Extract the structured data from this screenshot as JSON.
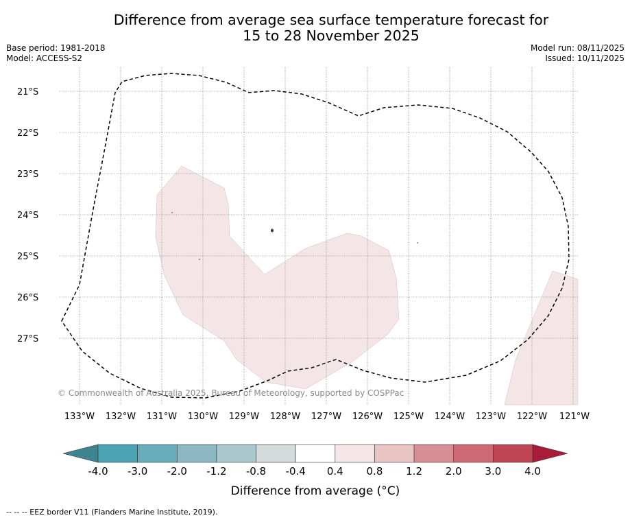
{
  "title_line1": "Difference from average sea surface temperature forecast for",
  "title_line2": "15 to 28 November 2025",
  "base_period": "Base period: 1981-2018",
  "model": "Model: ACCESS-S2",
  "model_run": "Model run: 08/11/2025",
  "issued": "Issued: 10/11/2025",
  "lon_labels": [
    "133°W",
    "132°W",
    "131°W",
    "130°W",
    "129°W",
    "128°W",
    "127°W",
    "126°W",
    "125°W",
    "124°W",
    "123°W",
    "122°W",
    "121°W"
  ],
  "lat_labels": [
    "21°S",
    "22°S",
    "23°S",
    "24°S",
    "25°S",
    "26°S",
    "27°S"
  ],
  "copyright": "© Commonwealth of Australia 2025, Bureau of Meteorology, supported by COSPPac",
  "colorbar": {
    "tick_labels": [
      "-4.0",
      "-3.0",
      "-2.0",
      "-1.2",
      "-0.8",
      "-0.4",
      "0.4",
      "0.8",
      "1.2",
      "2.0",
      "3.0",
      "4.0"
    ],
    "colors": [
      "#4aa2b3",
      "#6aadba",
      "#8bb8c3",
      "#a9c7cc",
      "#d5dada",
      "#ffffff",
      "#f4e6e6",
      "#e8c4c2",
      "#d88e95",
      "#cc6972",
      "#bf4454"
    ],
    "under_color": "#3f8590",
    "over_color": "#a81c3a",
    "label": "Difference from average (°C)"
  },
  "anomaly_fill_color": "#f4e6e6",
  "footer": "--  --  -- EEZ border V11 (Flanders Marine Institute, 2019)."
}
